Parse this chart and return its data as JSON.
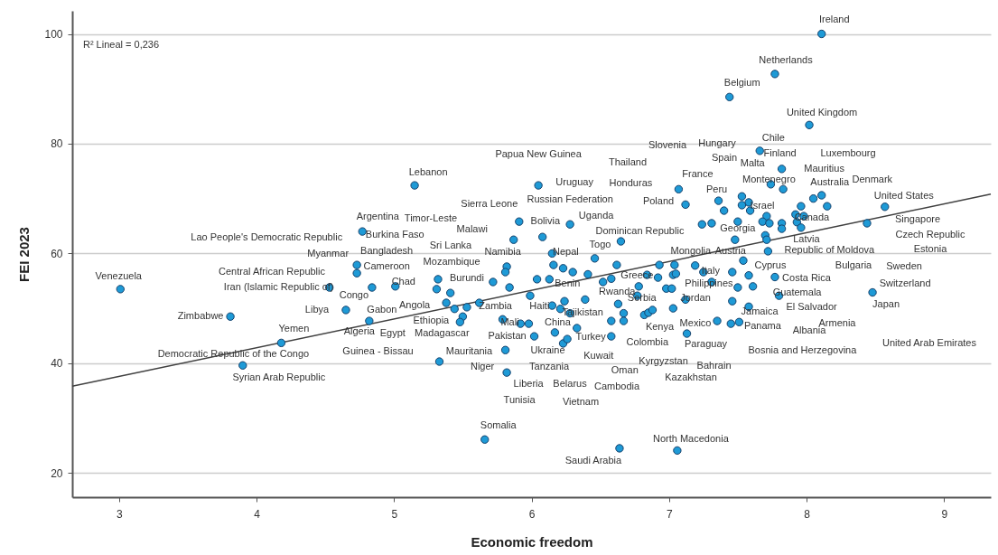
{
  "chart_data": {
    "type": "scatter",
    "xlabel": "Economic freedom",
    "ylabel": "FEI 2023",
    "xlim": [
      2.66,
      9.34
    ],
    "ylim": [
      15.6,
      104.2
    ],
    "xticks": [
      3,
      4,
      5,
      6,
      7,
      8,
      9
    ],
    "yticks": [
      20,
      40,
      60,
      80,
      100
    ],
    "grid": "y",
    "series": [
      {
        "color": "#1e9ad6",
        "marker": "circle",
        "x": [
          3.01,
          3.81,
          4.18,
          3.9,
          4.53,
          4.65,
          5.82,
          5.81,
          6.16,
          6.23,
          6.3,
          6.46,
          6.62,
          6.41,
          6.93,
          7.04,
          4.84,
          5.01,
          5.32,
          5.31,
          5.41,
          5.72,
          5.84,
          5.99,
          6.04,
          6.13,
          6.52,
          6.58,
          6.78,
          6.84,
          6.92,
          6.98,
          7.02,
          7.03,
          4.82,
          5.38,
          5.44,
          5.53,
          5.62,
          5.5,
          5.48,
          5.79,
          5.92,
          5.98,
          6.24,
          6.15,
          6.21,
          6.28,
          6.39,
          6.33,
          6.17,
          6.23,
          6.26,
          6.02,
          5.81,
          5.82,
          5.33,
          6.63,
          6.67,
          6.58,
          6.67,
          6.58,
          6.82,
          6.85,
          6.88,
          6.77,
          7.03,
          5.66,
          6.64,
          7.06,
          7.19,
          7.05,
          7.25,
          7.46,
          7.54,
          7.58,
          7.31,
          7.5,
          7.61,
          7.77,
          7.12,
          7.46,
          7.58,
          7.8,
          7.35,
          7.45,
          7.51,
          7.13,
          8.48,
          8.11,
          7.77,
          7.44,
          8.02,
          7.66,
          7.82,
          7.74,
          7.83,
          7.07,
          7.12,
          7.36,
          7.4,
          7.53,
          7.58,
          7.53,
          7.59,
          8.05,
          8.11,
          8.15,
          7.96,
          7.92,
          7.98,
          7.93,
          7.96,
          8.57,
          8.44,
          7.24,
          7.31,
          7.5,
          7.71,
          7.68,
          7.73,
          7.82,
          7.82,
          7.48,
          7.7,
          7.71,
          7.72,
          5.15,
          6.05,
          5.91,
          6.28,
          4.77,
          5.87,
          6.08,
          6.65,
          6.15,
          4.73,
          4.73
        ],
        "values": [
          53.5,
          48.5,
          43.7,
          39.6,
          53.8,
          49.7,
          57.6,
          56.6,
          57.9,
          57.3,
          56.6,
          59.1,
          57.9,
          56.2,
          57.9,
          57.9,
          53.8,
          54.0,
          55.3,
          53.5,
          52.8,
          54.8,
          53.8,
          52.3,
          55.3,
          55.3,
          54.8,
          55.4,
          54.0,
          56.1,
          55.6,
          53.6,
          53.6,
          56.1,
          47.7,
          51.0,
          49.9,
          50.2,
          51.0,
          48.5,
          47.5,
          48.0,
          47.2,
          47.2,
          51.3,
          50.5,
          49.9,
          49.1,
          51.6,
          46.4,
          45.6,
          43.6,
          44.4,
          44.9,
          42.4,
          38.3,
          40.3,
          50.8,
          49.1,
          47.7,
          47.7,
          44.9,
          48.8,
          49.2,
          49.7,
          52.3,
          50.0,
          26.1,
          24.5,
          24.1,
          57.8,
          56.3,
          56.6,
          56.6,
          58.7,
          56.0,
          54.8,
          53.8,
          54.0,
          55.7,
          51.6,
          51.3,
          50.3,
          52.3,
          47.7,
          47.2,
          47.5,
          45.4,
          52.9,
          100.0,
          92.7,
          88.5,
          83.4,
          78.7,
          75.4,
          72.6,
          71.7,
          71.7,
          68.9,
          69.6,
          67.8,
          70.4,
          69.3,
          68.8,
          67.8,
          70.0,
          70.6,
          68.6,
          68.6,
          67.1,
          66.8,
          65.7,
          64.7,
          68.5,
          65.5,
          65.3,
          65.5,
          65.8,
          66.8,
          65.8,
          65.5,
          65.5,
          64.5,
          62.5,
          63.3,
          62.5,
          60.4,
          72.4,
          72.4,
          65.8,
          65.3,
          64.0,
          62.5,
          63.0,
          62.2,
          60.0,
          57.9,
          56.4
        ]
      },
      {
        "type": "line",
        "color": "#404040",
        "x": [
          2.66,
          9.34
        ],
        "values": [
          35.8,
          70.8
        ]
      }
    ],
    "annotations": [
      "R² Lineal = 0,236",
      {
        "text": "Ireland",
        "x": 8.11,
        "y": 100.0
      },
      {
        "text": "Netherlands",
        "x": 7.77,
        "y": 92.7
      },
      {
        "text": "Belgium",
        "x": 7.44,
        "y": 88.5
      },
      {
        "text": "United Kingdom",
        "x": 8.02,
        "y": 83.4
      },
      {
        "text": "Chile",
        "x": 7.66,
        "y": 78.7
      },
      "Slovenia",
      "Hungary",
      {
        "text": "Finland",
        "x": 7.82,
        "y": 75.4
      },
      "Luxembourg",
      {
        "text": "Papua New Guinea",
        "x": 6.05,
        "y": 72.4
      },
      "Spain",
      {
        "text": "Malta",
        "x": 7.66,
        "y": 78.7
      },
      {
        "text": "Mauritius",
        "x": 8.05,
        "y": 70.0
      },
      "Thailand",
      {
        "text": "Lebanon",
        "x": 5.15,
        "y": 72.4
      },
      {
        "text": "France",
        "x": 7.07,
        "y": 71.7
      },
      {
        "text": "Montenegro",
        "x": 7.74,
        "y": 72.6
      },
      {
        "text": "Australia",
        "x": 8.11,
        "y": 70.6
      },
      {
        "text": "Denmark",
        "x": 8.57,
        "y": 68.5
      },
      {
        "text": "Uruguay",
        "x": 6.05,
        "y": 72.4
      },
      {
        "text": "Honduras",
        "x": 7.07,
        "y": 71.7
      },
      {
        "text": "Peru",
        "x": 7.36,
        "y": 69.6
      },
      {
        "text": "United States",
        "x": 8.57,
        "y": 68.5
      },
      {
        "text": "Sierra Leone",
        "x": 5.91,
        "y": 65.8
      },
      {
        "text": "Russian Federation",
        "x": 6.28,
        "y": 65.3
      },
      {
        "text": "Poland",
        "x": 7.12,
        "y": 68.9
      },
      {
        "text": "Israel",
        "x": 7.58,
        "y": 69.3
      },
      {
        "text": "Canada",
        "x": 7.98,
        "y": 66.8
      },
      {
        "text": "Singapore",
        "x": 8.44,
        "y": 65.5
      },
      {
        "text": "Argentina",
        "x": 4.77,
        "y": 64.0
      },
      "Timor-Leste",
      {
        "text": "Bolivia",
        "x": 5.91,
        "y": 65.8
      },
      {
        "text": "Uganda",
        "x": 6.28,
        "y": 65.3
      },
      {
        "text": "Czech Republic",
        "x": 8.44,
        "y": 65.5
      },
      {
        "text": "Lao People's Democratic Republic",
        "x": 4.77,
        "y": 64.0
      },
      {
        "text": "Burkina Faso",
        "x": 4.77,
        "y": 64.0
      },
      {
        "text": "Malawi",
        "x": 5.87,
        "y": 62.5
      },
      {
        "text": "Dominican Republic",
        "x": 6.65,
        "y": 62.2
      },
      {
        "text": "Georgia",
        "x": 7.48,
        "y": 62.5
      },
      {
        "text": "Latvia",
        "x": 7.96,
        "y": 64.7
      },
      "Sri Lanka",
      {
        "text": "Namibia",
        "x": 5.87,
        "y": 62.5
      },
      {
        "text": "Nepal",
        "x": 6.15,
        "y": 60.0
      },
      {
        "text": "Togo",
        "x": 6.65,
        "y": 62.2
      },
      {
        "text": "Republic of Moldova",
        "x": 7.72,
        "y": 60.4
      },
      "Estonia",
      {
        "text": "Myanmar",
        "x": 4.73,
        "y": 57.9
      },
      {
        "text": "Bangladesh",
        "x": 4.73,
        "y": 57.9
      },
      {
        "text": "Mongolia",
        "x": 7.04,
        "y": 57.9
      },
      {
        "text": "Austria",
        "x": 7.48,
        "y": 62.5
      },
      "Central African Republic",
      {
        "text": "Cameroon",
        "x": 4.73,
        "y": 56.4
      },
      {
        "text": "Mozambique",
        "x": 5.82,
        "y": 57.6
      },
      {
        "text": "Cyprus",
        "x": 7.54,
        "y": 58.7
      },
      "Bulgaria",
      {
        "text": "Sweden",
        "x": 8.48,
        "y": 52.9
      },
      {
        "text": "Iran (Islamic Republic of)",
        "x": 4.53,
        "y": 53.8
      },
      {
        "text": "Chad",
        "x": 5.01,
        "y": 54.0
      },
      {
        "text": "Burundi",
        "x": 5.32,
        "y": 55.3
      },
      {
        "text": "Italy",
        "x": 7.25,
        "y": 56.6
      },
      {
        "text": "Greece",
        "x": 6.84,
        "y": 56.1
      },
      {
        "text": "Costa Rica",
        "x": 7.77,
        "y": 55.7
      },
      {
        "text": "Switzerland",
        "x": 8.48,
        "y": 52.9
      },
      {
        "text": "Benin",
        "x": 6.13,
        "y": 55.3
      },
      {
        "text": "Philippines",
        "x": 7.31,
        "y": 54.8
      },
      {
        "text": "Congo",
        "x": 4.84,
        "y": 53.8
      },
      {
        "text": "Rwanda",
        "x": 6.78,
        "y": 54.0
      },
      {
        "text": "Guatemala",
        "x": 7.8,
        "y": 52.3
      },
      {
        "text": "Serbia",
        "x": 6.77,
        "y": 52.3
      },
      {
        "text": "Jordan",
        "x": 7.12,
        "y": 51.6
      },
      {
        "text": "Japan",
        "x": 8.48,
        "y": 52.9
      },
      {
        "text": "Libya",
        "x": 4.65,
        "y": 49.7
      },
      {
        "text": "Gabon",
        "x": 4.82,
        "y": 47.7
      },
      {
        "text": "Angola",
        "x": 5.38,
        "y": 51.0
      },
      {
        "text": "Zambia",
        "x": 5.62,
        "y": 51.0
      },
      {
        "text": "Haiti",
        "x": 6.15,
        "y": 50.5
      },
      {
        "text": "Tajikistan",
        "x": 6.28,
        "y": 49.1
      },
      {
        "text": "Jamaica",
        "x": 7.58,
        "y": 50.3
      },
      {
        "text": "El Salvador",
        "x": 7.8,
        "y": 52.3
      },
      {
        "text": "Zimbabwe",
        "x": 3.81,
        "y": 48.5
      },
      {
        "text": "Ethiopia",
        "x": 5.48,
        "y": 47.5
      },
      {
        "text": "Mali",
        "x": 5.79,
        "y": 48.0
      },
      {
        "text": "China",
        "x": 5.98,
        "y": 47.2
      },
      {
        "text": "Kenya",
        "x": 6.67,
        "y": 47.7
      },
      {
        "text": "Mexico",
        "x": 7.35,
        "y": 47.7
      },
      "Armenia",
      {
        "text": "Panama",
        "x": 7.51,
        "y": 47.5
      },
      "Albania",
      {
        "text": "Yemen",
        "x": 4.18,
        "y": 43.7
      },
      {
        "text": "Algeria",
        "x": 4.82,
        "y": 47.7
      },
      {
        "text": "Egypt",
        "x": 4.82,
        "y": 47.7
      },
      {
        "text": "Madagascar",
        "x": 5.48,
        "y": 47.5
      },
      {
        "text": "Pakistan",
        "x": 6.02,
        "y": 44.9
      },
      {
        "text": "Turkey",
        "x": 6.26,
        "y": 44.4
      },
      {
        "text": "Colombia",
        "x": 6.58,
        "y": 44.9
      },
      {
        "text": "Paraguay",
        "x": 7.13,
        "y": 45.4
      },
      {
        "text": "Bosnia and Herzegovina",
        "x": 7.51,
        "y": 47.5
      },
      "United Arab Emirates",
      {
        "text": "Democratic Republic of the Congo",
        "x": 4.18,
        "y": 43.7
      },
      {
        "text": "Guinea - Bissau",
        "x": 5.33,
        "y": 40.3
      },
      {
        "text": "Mauritania",
        "x": 5.33,
        "y": 40.3
      },
      {
        "text": "Ukraine",
        "x": 5.81,
        "y": 42.4
      },
      {
        "text": "Kuwait",
        "x": 6.58,
        "y": 44.9
      },
      {
        "text": "Kyrgyzstan",
        "x": 7.13,
        "y": 45.4
      },
      {
        "text": "Bahrain",
        "x": 7.13,
        "y": 45.4
      },
      {
        "text": "Niger",
        "x": 5.82,
        "y": 38.3
      },
      {
        "text": "Tanzania",
        "x": 5.82,
        "y": 38.3
      },
      {
        "text": "Oman",
        "x": 6.58,
        "y": 44.9
      },
      {
        "text": "Syrian Arab Republic",
        "x": 3.9,
        "y": 39.6
      },
      {
        "text": "Liberia",
        "x": 5.82,
        "y": 38.3
      },
      "Belarus",
      "Cambodia",
      "Kazakhstan",
      {
        "text": "Tunisia",
        "x": 5.82,
        "y": 38.3
      },
      "Vietnam",
      {
        "text": "Somalia",
        "x": 5.66,
        "y": 26.1
      },
      {
        "text": "North Macedonia",
        "x": 7.06,
        "y": 24.1
      },
      {
        "text": "Saudi Arabia",
        "x": 6.64,
        "y": 24.5
      },
      {
        "text": "Venezuela",
        "x": 3.01,
        "y": 53.5
      }
    ]
  }
}
